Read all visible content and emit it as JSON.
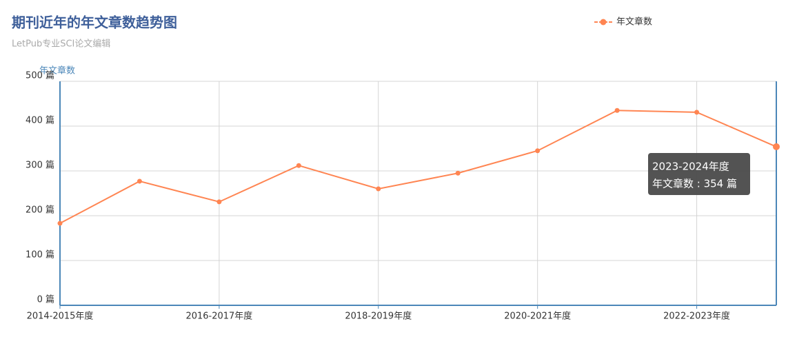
{
  "chart_data": {
    "type": "line",
    "title": "期刊近年的年文章数趋势图",
    "subtitle": "LetPub专业SCI论文编辑",
    "y_label": "年文章数",
    "categories": [
      "2014-2015年度",
      null,
      "2016-2017年度",
      null,
      "2018-2019年度",
      null,
      "2020-2021年度",
      null,
      "2022-2023年度",
      null
    ],
    "series": [
      {
        "name": "年文章数",
        "color": "#ff8552",
        "values": [
          183,
          277,
          231,
          312,
          260,
          295,
          345,
          435,
          431,
          354
        ]
      }
    ],
    "ylim": [
      0,
      500
    ],
    "yticks": [
      {
        "value": 0,
        "label": "0 篇"
      },
      {
        "value": 100,
        "label": "100 篇"
      },
      {
        "value": 200,
        "label": "200 篇"
      },
      {
        "value": 300,
        "label": "300 篇"
      },
      {
        "value": 400,
        "label": "400 篇"
      },
      {
        "value": 500,
        "label": "500 篇"
      }
    ],
    "grid": true,
    "legend": "top-right",
    "tooltip": {
      "title": "2023-2024年度",
      "text": "年文章数 : 354 篇"
    }
  }
}
